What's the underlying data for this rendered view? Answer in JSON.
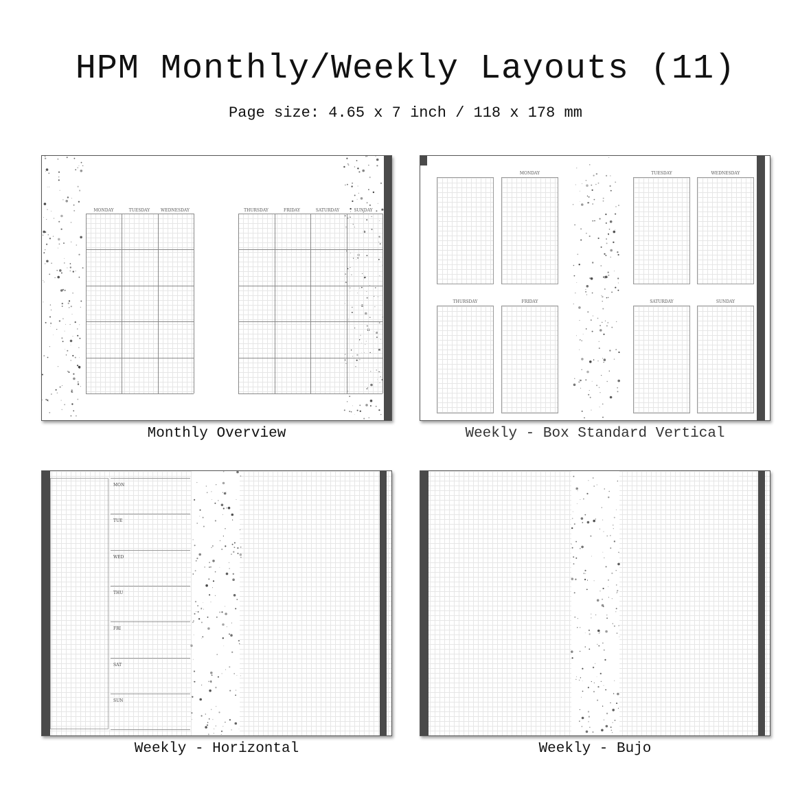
{
  "header": {
    "title": "HPM Monthly/Weekly Layouts (11)",
    "subtitle": "Page size: 4.65 x 7 inch / 118 x 178 mm"
  },
  "panels": [
    {
      "caption": "Monthly Overview",
      "days": [
        "MONDAY",
        "TUESDAY",
        "WEDNESDAY",
        "THURSDAY",
        "FRIDAY",
        "SATURDAY",
        "SUNDAY"
      ]
    },
    {
      "caption": "Weekly - Box Standard Vertical",
      "days": [
        "MONDAY",
        "TUESDAY",
        "WEDNESDAY",
        "THURSDAY",
        "FRIDAY",
        "SATURDAY",
        "SUNDAY"
      ]
    },
    {
      "caption": "Weekly - Horizontal",
      "days": [
        "MON",
        "TUE",
        "WED",
        "THU",
        "FRI",
        "SAT",
        "SUN"
      ]
    },
    {
      "caption": "Weekly - Bujo"
    }
  ],
  "colors": {
    "strip": "#4a4a4a",
    "grid": "#e6e6e6",
    "speckle": "#444444"
  }
}
